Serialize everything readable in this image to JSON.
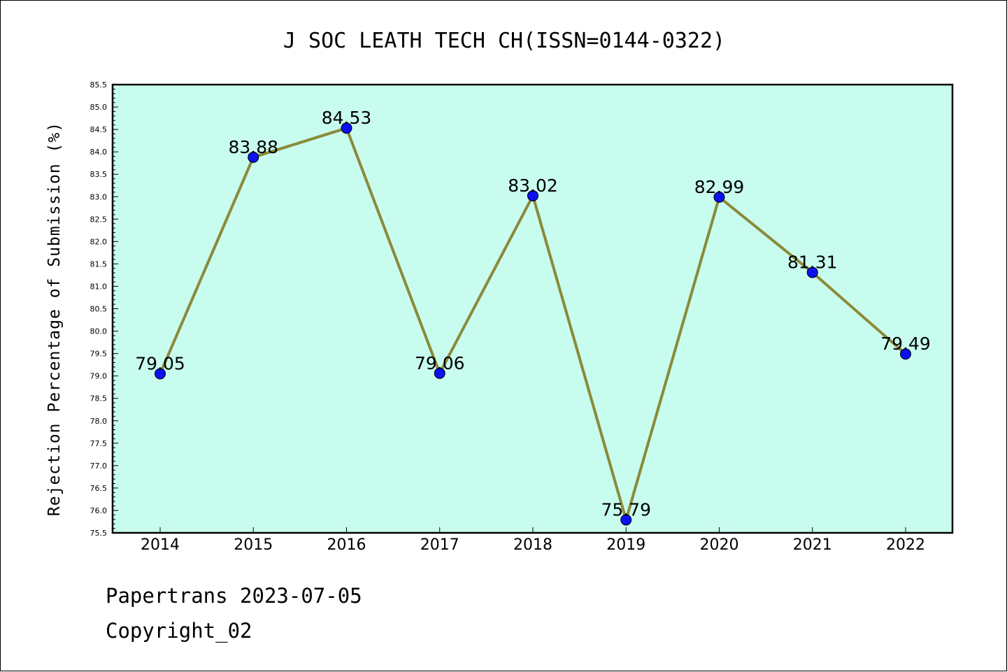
{
  "chart_data": {
    "type": "line",
    "title": "J SOC LEATH TECH CH(ISSN=0144-0322)",
    "xlabel": "",
    "ylabel": "Rejection Percentage of Submission (%)",
    "categories": [
      "2014",
      "2015",
      "2016",
      "2017",
      "2018",
      "2019",
      "2020",
      "2021",
      "2022"
    ],
    "values": [
      79.05,
      83.88,
      84.53,
      79.06,
      83.02,
      75.79,
      82.99,
      81.31,
      79.49
    ],
    "data_labels": [
      "79.05",
      "83.88",
      "84.53",
      "79.06",
      "83.02",
      "75.79",
      "82.99",
      "81.31",
      "79.49"
    ],
    "ylim": [
      75.5,
      85.5
    ],
    "yticks": [
      "75.5",
      "76.0",
      "76.5",
      "77.0",
      "77.5",
      "78.0",
      "78.5",
      "79.0",
      "79.5",
      "80.0",
      "80.5",
      "81.0",
      "81.5",
      "82.0",
      "82.5",
      "83.0",
      "83.5",
      "84.0",
      "84.5",
      "85.0",
      "85.5"
    ],
    "grid": false,
    "colors": {
      "plot_background": "#c8fcee",
      "line": "#8b8a3a",
      "marker": "#0a10f0"
    }
  },
  "footer": {
    "line1": "Papertrans 2023-07-05",
    "line2": "Copyright_02"
  }
}
